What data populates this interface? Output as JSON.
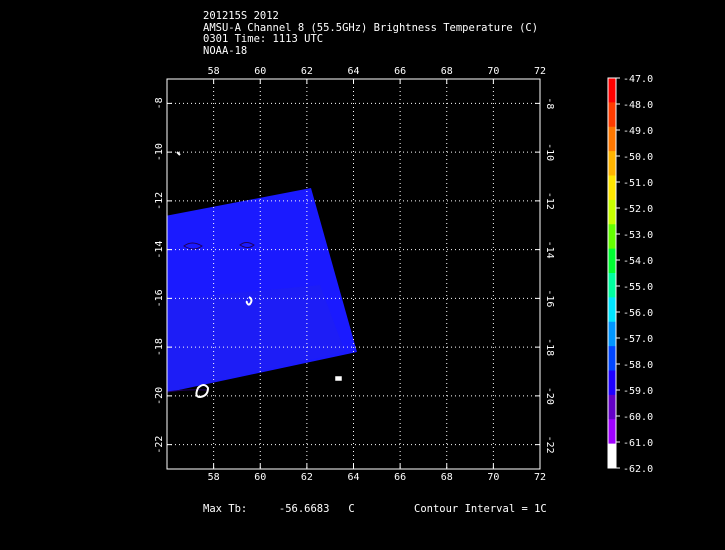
{
  "header": {
    "line1": "201215S 2012",
    "line2": "AMSU-A Channel 8 (55.5GHz) Brightness Temperature (C)",
    "line3": "0301 Time: 1113 UTC",
    "line4": "NOAA-18"
  },
  "map": {
    "lon_range": [
      56,
      72
    ],
    "lat_range": [
      -23,
      -7
    ],
    "lon_ticks": [
      "58",
      "60",
      "62",
      "64",
      "66",
      "68",
      "70",
      "72"
    ],
    "lon_tick_values": [
      58,
      60,
      62,
      64,
      66,
      68,
      70,
      72
    ],
    "lat_ticks": [
      "-8",
      "-10",
      "-12",
      "-14",
      "-16",
      "-18",
      "-20",
      "-22"
    ],
    "lat_tick_values": [
      -8,
      -10,
      -12,
      -14,
      -16,
      -18,
      -20,
      -22
    ],
    "grid": "dotted",
    "swath_color": "#1a1aff"
  },
  "colorbar": {
    "labels": [
      "-47.0",
      "-48.0",
      "-49.0",
      "-50.0",
      "-51.0",
      "-52.0",
      "-53.0",
      "-54.0",
      "-55.0",
      "-56.0",
      "-57.0",
      "-58.0",
      "-59.0",
      "-60.0",
      "-61.0",
      "-62.0"
    ],
    "colors": [
      "#ff0000",
      "#ff3c00",
      "#ff7800",
      "#ffb400",
      "#ffe600",
      "#c8ff00",
      "#64ff00",
      "#00ff32",
      "#00ffa0",
      "#00e6ff",
      "#0096ff",
      "#0046ff",
      "#1e00ff",
      "#6400c8",
      "#a000ff",
      "#ffffff"
    ]
  },
  "footer": {
    "max_label": "Max Tb:",
    "max_value": "-56.6683",
    "max_unit": "C",
    "contour": "Contour Interval = 1C"
  }
}
